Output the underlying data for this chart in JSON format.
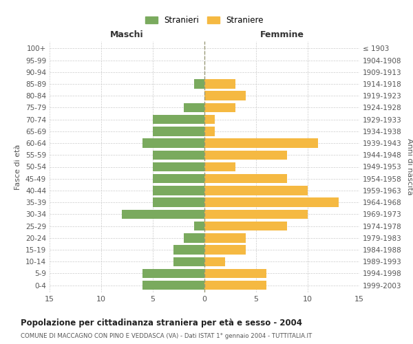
{
  "age_groups": [
    "0-4",
    "5-9",
    "10-14",
    "15-19",
    "20-24",
    "25-29",
    "30-34",
    "35-39",
    "40-44",
    "45-49",
    "50-54",
    "55-59",
    "60-64",
    "65-69",
    "70-74",
    "75-79",
    "80-84",
    "85-89",
    "90-94",
    "95-99",
    "100+"
  ],
  "birth_years": [
    "1999-2003",
    "1994-1998",
    "1989-1993",
    "1984-1988",
    "1979-1983",
    "1974-1978",
    "1969-1973",
    "1964-1968",
    "1959-1963",
    "1954-1958",
    "1949-1953",
    "1944-1948",
    "1939-1943",
    "1934-1938",
    "1929-1933",
    "1924-1928",
    "1919-1923",
    "1914-1918",
    "1909-1913",
    "1904-1908",
    "≤ 1903"
  ],
  "males": [
    6,
    6,
    3,
    3,
    2,
    1,
    8,
    5,
    5,
    5,
    5,
    5,
    6,
    5,
    5,
    2,
    0,
    1,
    0,
    0,
    0
  ],
  "females": [
    6,
    6,
    2,
    4,
    4,
    8,
    10,
    13,
    10,
    8,
    3,
    8,
    11,
    1,
    1,
    3,
    4,
    3,
    0,
    0,
    0
  ],
  "male_color": "#7aaa5e",
  "female_color": "#f5b942",
  "title": "Popolazione per cittadinanza straniera per età e sesso - 2004",
  "subtitle": "COMUNE DI MACCAGNO CON PINO E VEDDASCA (VA) - Dati ISTAT 1° gennaio 2004 - TUTTITALIA.IT",
  "xlabel_left": "Maschi",
  "xlabel_right": "Femmine",
  "ylabel_left": "Fasce di età",
  "ylabel_right": "Anni di nascita",
  "legend_males": "Stranieri",
  "legend_females": "Straniere",
  "xlim": 15,
  "background_color": "#ffffff",
  "grid_color": "#cccccc"
}
